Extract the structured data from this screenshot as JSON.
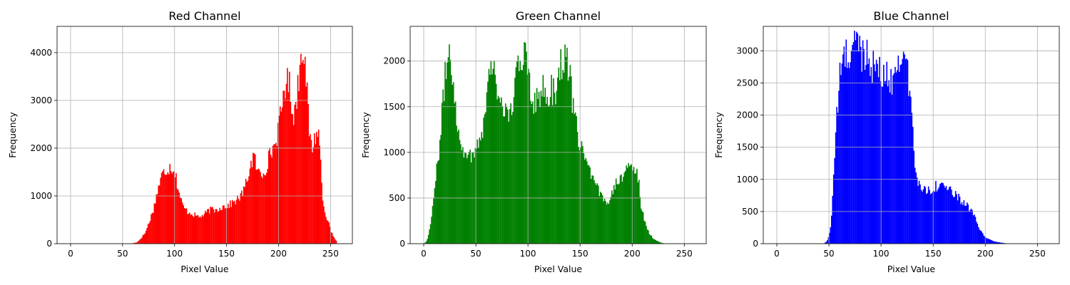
{
  "chart_data": [
    {
      "type": "bar",
      "title": "Red Channel",
      "xlabel": "Pixel Value",
      "ylabel": "Frequency",
      "color": "#ff0000",
      "xlim": [
        -13,
        271
      ],
      "ylim": [
        0,
        4550
      ],
      "xticks": [
        0,
        50,
        100,
        150,
        200,
        250
      ],
      "yticks": [
        0,
        1000,
        2000,
        3000,
        4000
      ],
      "grid": true,
      "bins": "pixel values 0-255, bin width 1",
      "profile": [
        [
          0,
          0
        ],
        [
          55,
          0
        ],
        [
          60,
          10
        ],
        [
          64,
          30
        ],
        [
          68,
          120
        ],
        [
          72,
          240
        ],
        [
          76,
          480
        ],
        [
          80,
          750
        ],
        [
          84,
          1150
        ],
        [
          88,
          1450
        ],
        [
          92,
          1550
        ],
        [
          96,
          1620
        ],
        [
          100,
          1550
        ],
        [
          104,
          1100
        ],
        [
          108,
          780
        ],
        [
          112,
          680
        ],
        [
          116,
          640
        ],
        [
          120,
          590
        ],
        [
          124,
          560
        ],
        [
          128,
          600
        ],
        [
          132,
          680
        ],
        [
          136,
          720
        ],
        [
          140,
          700
        ],
        [
          144,
          760
        ],
        [
          148,
          790
        ],
        [
          152,
          800
        ],
        [
          156,
          860
        ],
        [
          160,
          920
        ],
        [
          164,
          1000
        ],
        [
          168,
          1200
        ],
        [
          172,
          1550
        ],
        [
          176,
          1850
        ],
        [
          180,
          1500
        ],
        [
          184,
          1450
        ],
        [
          188,
          1600
        ],
        [
          192,
          1900
        ],
        [
          196,
          2050
        ],
        [
          200,
          2400
        ],
        [
          204,
          3000
        ],
        [
          206,
          3350
        ],
        [
          210,
          3400
        ],
        [
          214,
          2700
        ],
        [
          216,
          2800
        ],
        [
          220,
          3600
        ],
        [
          222,
          4050
        ],
        [
          224,
          4300
        ],
        [
          226,
          3600
        ],
        [
          228,
          2900
        ],
        [
          230,
          2200
        ],
        [
          232,
          2000
        ],
        [
          236,
          2300
        ],
        [
          238,
          2400
        ],
        [
          240,
          1900
        ],
        [
          242,
          1100
        ],
        [
          244,
          700
        ],
        [
          248,
          450
        ],
        [
          250,
          280
        ],
        [
          252,
          180
        ],
        [
          254,
          100
        ],
        [
          255,
          60
        ]
      ]
    },
    {
      "type": "bar",
      "title": "Green Channel",
      "xlabel": "Pixel Value",
      "ylabel": "Frequency",
      "color": "#008000",
      "xlim": [
        -13,
        271
      ],
      "ylim": [
        0,
        2380
      ],
      "xticks": [
        0,
        50,
        100,
        150,
        200,
        250
      ],
      "yticks": [
        0,
        500,
        1000,
        1500,
        2000
      ],
      "grid": true,
      "bins": "pixel values 0-255, bin width 1",
      "profile": [
        [
          0,
          0
        ],
        [
          3,
          30
        ],
        [
          5,
          120
        ],
        [
          8,
          350
        ],
        [
          11,
          650
        ],
        [
          14,
          950
        ],
        [
          17,
          1350
        ],
        [
          20,
          1750
        ],
        [
          22,
          2000
        ],
        [
          24,
          2150
        ],
        [
          26,
          1980
        ],
        [
          28,
          1850
        ],
        [
          30,
          1600
        ],
        [
          32,
          1350
        ],
        [
          34,
          1150
        ],
        [
          36,
          1050
        ],
        [
          40,
          1030
        ],
        [
          44,
          950
        ],
        [
          48,
          1000
        ],
        [
          52,
          1100
        ],
        [
          56,
          1250
        ],
        [
          60,
          1500
        ],
        [
          62,
          1800
        ],
        [
          64,
          2000
        ],
        [
          66,
          2000
        ],
        [
          68,
          1900
        ],
        [
          70,
          1650
        ],
        [
          74,
          1600
        ],
        [
          78,
          1450
        ],
        [
          82,
          1350
        ],
        [
          86,
          1600
        ],
        [
          90,
          1900
        ],
        [
          94,
          1950
        ],
        [
          96,
          2150
        ],
        [
          98,
          2250
        ],
        [
          100,
          1950
        ],
        [
          102,
          1750
        ],
        [
          106,
          1550
        ],
        [
          110,
          1600
        ],
        [
          114,
          1700
        ],
        [
          118,
          1550
        ],
        [
          122,
          1700
        ],
        [
          126,
          1650
        ],
        [
          130,
          1900
        ],
        [
          134,
          2050
        ],
        [
          138,
          2000
        ],
        [
          140,
          1900
        ],
        [
          142,
          1600
        ],
        [
          144,
          1400
        ],
        [
          146,
          1300
        ],
        [
          150,
          1100
        ],
        [
          154,
          1000
        ],
        [
          158,
          800
        ],
        [
          162,
          700
        ],
        [
          166,
          620
        ],
        [
          170,
          520
        ],
        [
          174,
          470
        ],
        [
          178,
          480
        ],
        [
          182,
          620
        ],
        [
          186,
          700
        ],
        [
          190,
          750
        ],
        [
          194,
          780
        ],
        [
          198,
          820
        ],
        [
          202,
          850
        ],
        [
          204,
          800
        ],
        [
          206,
          700
        ],
        [
          208,
          450
        ],
        [
          212,
          250
        ],
        [
          216,
          120
        ],
        [
          220,
          60
        ],
        [
          224,
          30
        ],
        [
          228,
          10
        ],
        [
          232,
          0
        ],
        [
          255,
          0
        ]
      ]
    },
    {
      "type": "bar",
      "title": "Blue Channel",
      "xlabel": "Pixel Value",
      "ylabel": "Frequency",
      "color": "#0000ff",
      "xlim": [
        -13,
        271
      ],
      "ylim": [
        0,
        3380
      ],
      "xticks": [
        0,
        50,
        100,
        150,
        200,
        250
      ],
      "yticks": [
        0,
        500,
        1000,
        1500,
        2000,
        2500,
        3000
      ],
      "grid": true,
      "bins": "pixel values 0-255, bin width 1",
      "profile": [
        [
          0,
          0
        ],
        [
          44,
          0
        ],
        [
          46,
          10
        ],
        [
          48,
          40
        ],
        [
          50,
          120
        ],
        [
          52,
          320
        ],
        [
          54,
          900
        ],
        [
          56,
          1500
        ],
        [
          58,
          2100
        ],
        [
          60,
          2500
        ],
        [
          62,
          2800
        ],
        [
          64,
          2950
        ],
        [
          68,
          2900
        ],
        [
          72,
          2950
        ],
        [
          74,
          3100
        ],
        [
          76,
          3200
        ],
        [
          78,
          3100
        ],
        [
          82,
          2950
        ],
        [
          86,
          3000
        ],
        [
          88,
          2950
        ],
        [
          92,
          2750
        ],
        [
          96,
          2750
        ],
        [
          100,
          2600
        ],
        [
          104,
          2600
        ],
        [
          108,
          2600
        ],
        [
          112,
          2500
        ],
        [
          114,
          2700
        ],
        [
          116,
          2850
        ],
        [
          118,
          3000
        ],
        [
          120,
          2950
        ],
        [
          124,
          2800
        ],
        [
          128,
          2300
        ],
        [
          130,
          1900
        ],
        [
          132,
          1300
        ],
        [
          134,
          1000
        ],
        [
          138,
          880
        ],
        [
          142,
          850
        ],
        [
          146,
          830
        ],
        [
          150,
          880
        ],
        [
          154,
          900
        ],
        [
          158,
          930
        ],
        [
          162,
          900
        ],
        [
          166,
          820
        ],
        [
          170,
          760
        ],
        [
          174,
          720
        ],
        [
          178,
          660
        ],
        [
          182,
          600
        ],
        [
          186,
          520
        ],
        [
          190,
          400
        ],
        [
          194,
          240
        ],
        [
          198,
          140
        ],
        [
          202,
          80
        ],
        [
          206,
          50
        ],
        [
          210,
          30
        ],
        [
          214,
          20
        ],
        [
          218,
          10
        ],
        [
          222,
          0
        ],
        [
          255,
          0
        ]
      ]
    }
  ]
}
